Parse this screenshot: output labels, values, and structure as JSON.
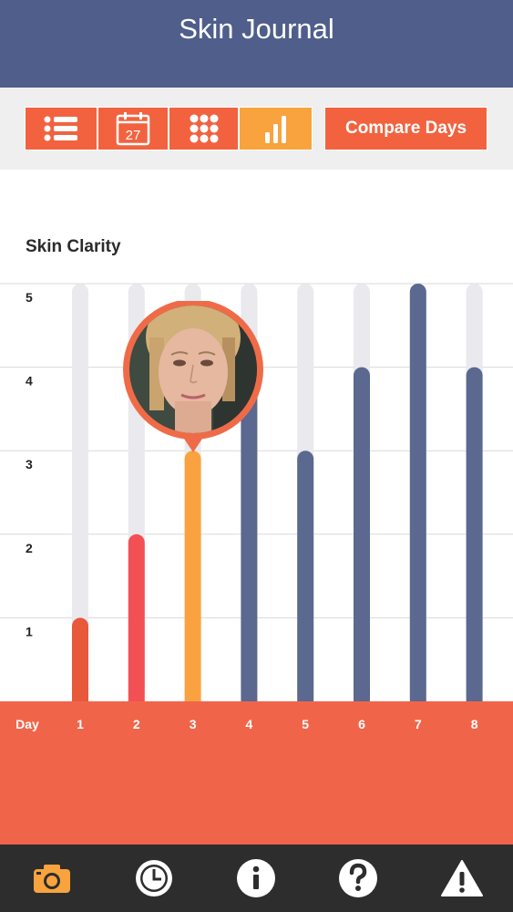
{
  "header": {
    "title": "Skin Journal"
  },
  "toolbar": {
    "list_icon": "list-icon",
    "calendar_icon": "calendar-icon",
    "calendar_day": "27",
    "grid_icon": "grid-icon",
    "bar_chart_icon": "bar-chart-icon",
    "compare_label": "Compare Days",
    "active_view": "bar-chart"
  },
  "colors": {
    "header_bg": "#4f5e8a",
    "accent_orange": "#f2623f",
    "active_tab": "#f8a33e",
    "bar_day1": "#e8583a",
    "bar_day2": "#f25054",
    "bar_selected": "#fba240",
    "bar_default": "#5b6890",
    "track": "#e9e9ee",
    "footer_band": "#f0654a",
    "bottom_nav": "#2d2d2d"
  },
  "chart_data": {
    "type": "bar",
    "title": "Skin Clarity",
    "xlabel": "Day",
    "ylabel": "",
    "categories": [
      "1",
      "2",
      "3",
      "4",
      "5",
      "6",
      "7",
      "8"
    ],
    "values": [
      1,
      2,
      3,
      4,
      3,
      4,
      5,
      4
    ],
    "yticks": [
      "1",
      "2",
      "3",
      "4",
      "5"
    ],
    "ylim": [
      0,
      5
    ],
    "selected_day": "3",
    "grid": true
  },
  "bottom_nav": [
    {
      "name": "camera-icon",
      "active": true
    },
    {
      "name": "history-clock-icon",
      "active": false
    },
    {
      "name": "info-icon",
      "active": false
    },
    {
      "name": "help-icon",
      "active": false
    },
    {
      "name": "warning-icon",
      "active": false
    }
  ]
}
